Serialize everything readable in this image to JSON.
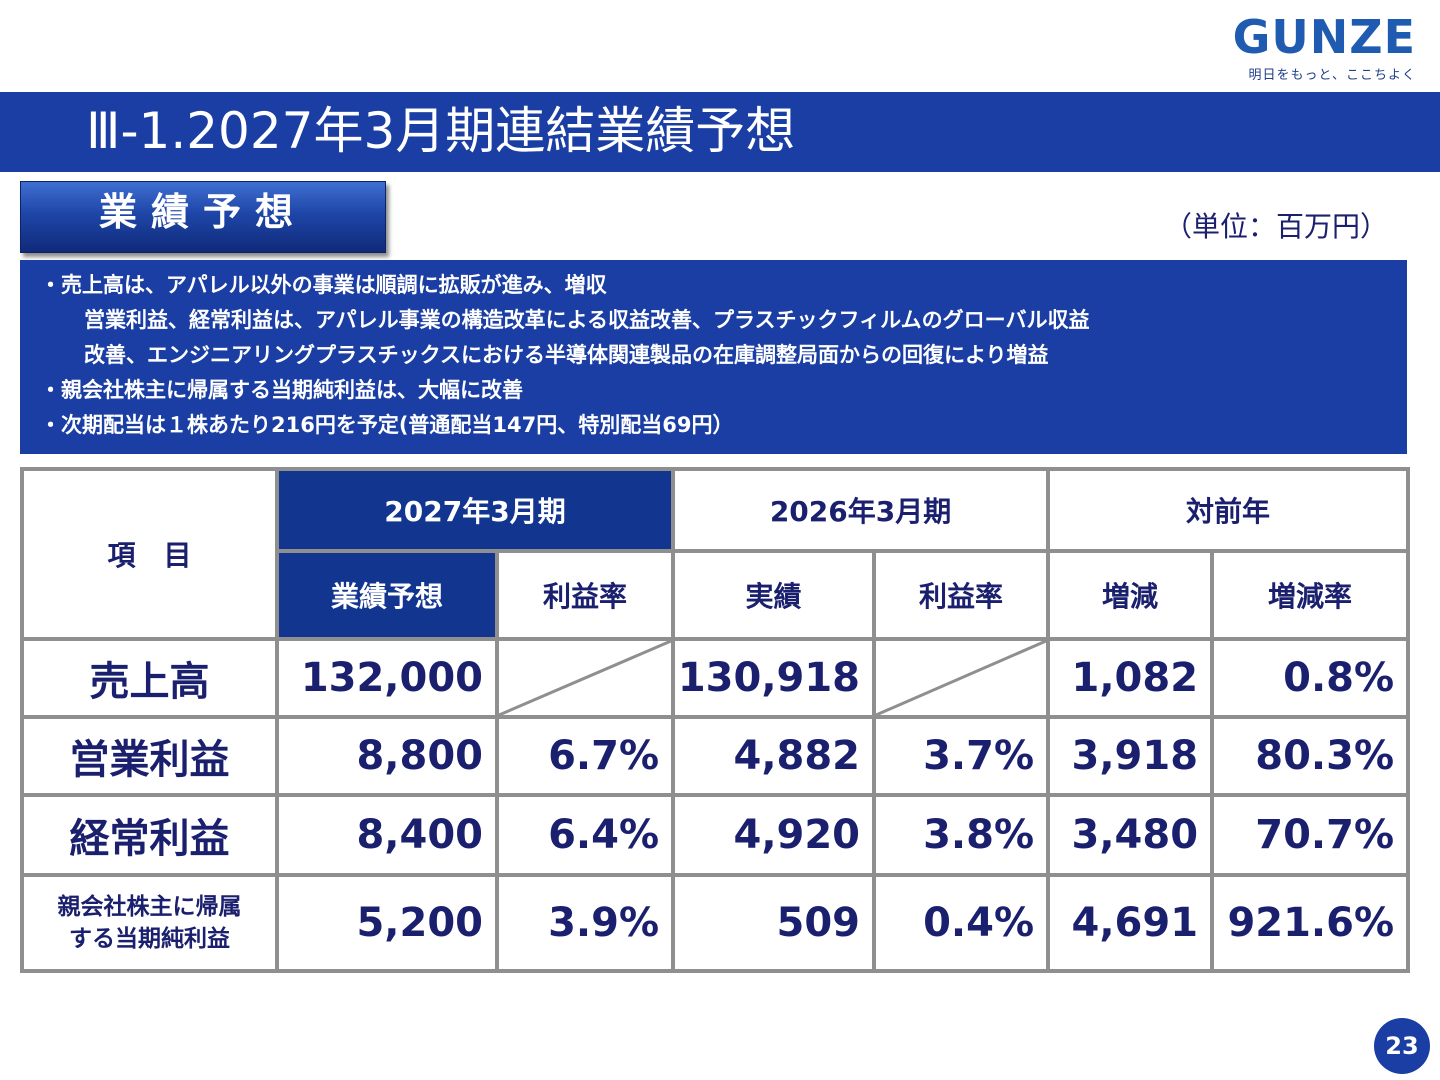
{
  "logo": {
    "wordmark": "GUNZE",
    "tagline": "明日をもっと、ここちよく"
  },
  "title": "Ⅲ-1.2027年3月期連結業績予想",
  "section_label": "業績予想",
  "unit": "（単位：百万円）",
  "notes": [
    "・売上高は、アパレル以外の事業は順調に拡販が進み、増収",
    "営業利益、経常利益は、アパレル事業の構造改革による収益改善、プラスチックフィルムのグローバル収益",
    "改善、エンジニアリングプラスチックスにおける半導体関連製品の在庫調整局面からの回復により増益",
    "・親会社株主に帰属する当期純利益は、大幅に改善",
    "・次期配当は１株あたり216円を予定(普通配当147円、特別配当69円）"
  ],
  "table": {
    "item_header": "項　目",
    "groups": [
      "2027年3月期",
      "2026年3月期",
      "対前年"
    ],
    "subheaders": [
      "業績予想",
      "利益率",
      "実績",
      "利益率",
      "増減",
      "増減率"
    ],
    "rows": [
      {
        "label_lines": [
          "売上高"
        ],
        "forecast": "132,000",
        "forecast_margin": "",
        "actual": "130,918",
        "actual_margin": "",
        "change": "1,082",
        "change_rate": "0.8%"
      },
      {
        "label_lines": [
          "営業利益"
        ],
        "forecast": "8,800",
        "forecast_margin": "6.7%",
        "actual": "4,882",
        "actual_margin": "3.7%",
        "change": "3,918",
        "change_rate": "80.3%"
      },
      {
        "label_lines": [
          "経常利益"
        ],
        "forecast": "8,400",
        "forecast_margin": "6.4%",
        "actual": "4,920",
        "actual_margin": "3.8%",
        "change": "3,480",
        "change_rate": "70.7%"
      },
      {
        "label_lines": [
          "親会社株主に帰属",
          "する当期純利益"
        ],
        "forecast": "5,200",
        "forecast_margin": "3.9%",
        "actual": "509",
        "actual_margin": "0.4%",
        "change": "4,691",
        "change_rate": "921.6%"
      }
    ]
  },
  "page_number": "23",
  "colors": {
    "primary": "#1a3ea3",
    "header_highlight": "#12358f",
    "text": "#1a1f6e",
    "border": "#8f8f8f",
    "logo": "#1f5bb0"
  }
}
